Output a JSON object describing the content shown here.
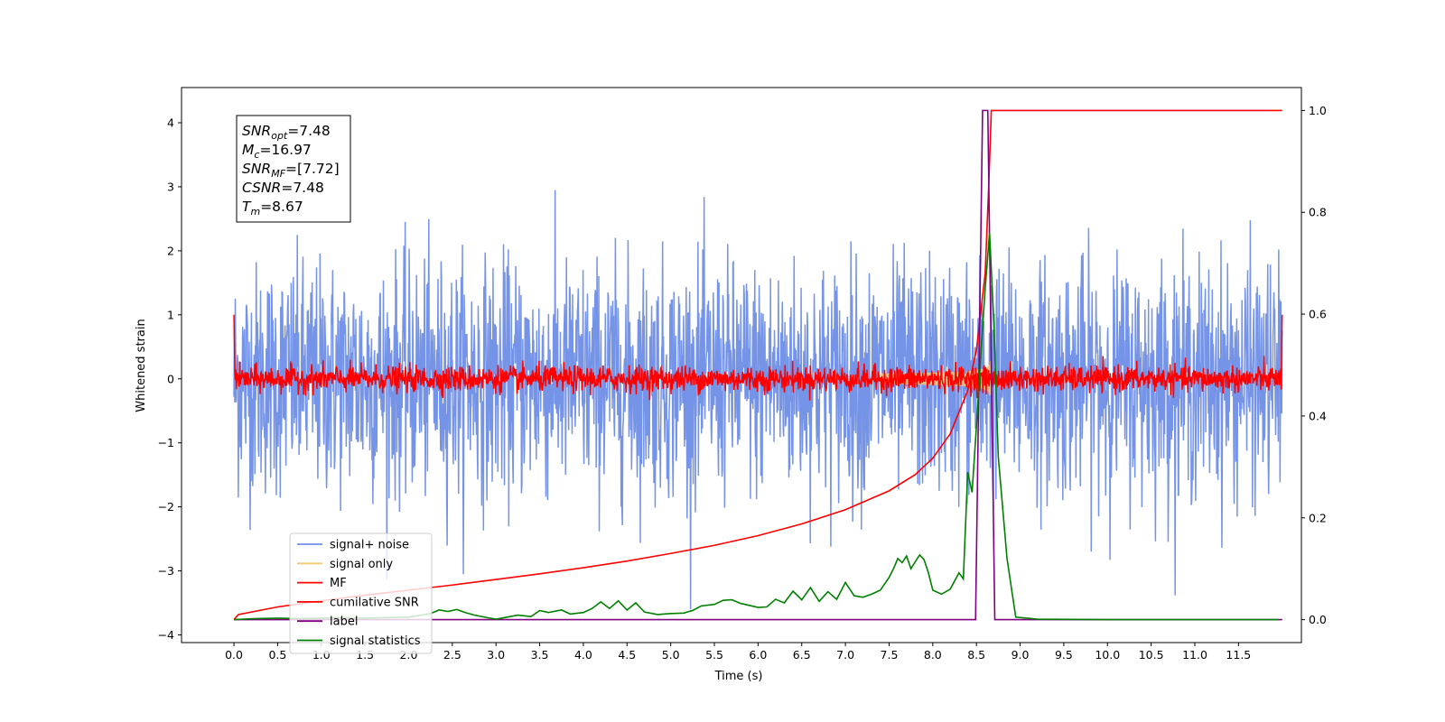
{
  "chart_data": {
    "type": "line",
    "title": "",
    "xlabel": "Time (s)",
    "ylabel": "Whitened strain",
    "y2label": "",
    "xlim": [
      -0.6,
      12.22
    ],
    "ylim": [
      -4.12,
      4.55
    ],
    "y2lim": [
      -0.045,
      1.045
    ],
    "x_ticks": [
      0.0,
      0.5,
      1.0,
      1.5,
      2.0,
      2.5,
      3.0,
      3.5,
      4.0,
      4.5,
      5.0,
      5.5,
      6.0,
      6.5,
      7.0,
      7.5,
      8.0,
      8.5,
      9.0,
      9.5,
      10.0,
      10.5,
      11.0,
      11.5
    ],
    "x_tick_labels": [
      "0.0",
      "0.5",
      "1.0",
      "1.5",
      "2.0",
      "2.5",
      "3.0",
      "3.5",
      "4.0",
      "4.5",
      "5.0",
      "5.5",
      "6.0",
      "6.5",
      "7.0",
      "7.5",
      "8.0",
      "8.5",
      "9.0",
      "9.5",
      "10.0",
      "10.5",
      "11.0",
      "11.5"
    ],
    "y_ticks": [
      -4,
      -3,
      -2,
      -1,
      0,
      1,
      2,
      3,
      4
    ],
    "y_tick_labels": [
      "−4",
      "−3",
      "−2",
      "−1",
      "0",
      "1",
      "2",
      "3",
      "4"
    ],
    "y2_ticks": [
      0.0,
      0.2,
      0.4,
      0.6,
      0.8,
      1.0
    ],
    "y2_tick_labels": [
      "0.0",
      "0.2",
      "0.4",
      "0.6",
      "0.8",
      "1.0"
    ],
    "grid": false,
    "legend_position": "lower-left",
    "series": [
      {
        "name": "signal+ noise",
        "axis": "left",
        "color": "#6f8ee6",
        "description": "whitened strain noise, approx. std 1.0, x from 0 to 12.0, peaks ~±3.4",
        "x_range": [
          0.0,
          12.0
        ],
        "std": 1.0
      },
      {
        "name": "signal only",
        "axis": "left",
        "color": "#f5c878",
        "description": "chirp waveform growing to ~±0.35 near merger at t=8.67",
        "x_range": [
          0.0,
          8.67
        ],
        "peak_amplitude": 0.35
      },
      {
        "name": "MF",
        "axis": "left",
        "color": "#ff0000",
        "description": "matched filter output, approx. std 0.1, starts ~1.0 and ends ~1.0",
        "x_range": [
          0.0,
          12.0
        ],
        "std": 0.1
      },
      {
        "name": "cumilative SNR",
        "axis": "right",
        "color": "#ff0000",
        "x": [
          0.0,
          0.05,
          0.5,
          1.0,
          1.5,
          2.0,
          2.5,
          3.0,
          3.5,
          4.0,
          4.5,
          5.0,
          5.5,
          6.0,
          6.5,
          7.0,
          7.5,
          7.8,
          8.0,
          8.2,
          8.4,
          8.5,
          8.6,
          8.64,
          8.67,
          12.0
        ],
        "values": [
          0.0,
          0.01,
          0.025,
          0.037,
          0.048,
          0.058,
          0.068,
          0.079,
          0.09,
          0.102,
          0.115,
          0.13,
          0.146,
          0.165,
          0.188,
          0.216,
          0.253,
          0.285,
          0.317,
          0.365,
          0.45,
          0.53,
          0.68,
          0.85,
          1.0,
          1.0
        ]
      },
      {
        "name": "label",
        "axis": "right",
        "color": "#800080",
        "x": [
          0.0,
          8.49,
          8.57,
          8.63,
          8.71,
          12.0
        ],
        "values": [
          0.0,
          0.0,
          1.0,
          1.0,
          0.0,
          0.0
        ]
      },
      {
        "name": "signal statistics",
        "axis": "right",
        "color": "#008000",
        "x": [
          0.0,
          0.25,
          0.5,
          0.75,
          1.0,
          1.25,
          1.5,
          1.75,
          2.0,
          2.15,
          2.25,
          2.35,
          2.45,
          2.55,
          2.65,
          2.75,
          2.9,
          3.0,
          3.1,
          3.25,
          3.4,
          3.5,
          3.6,
          3.75,
          3.85,
          4.0,
          4.1,
          4.2,
          4.3,
          4.4,
          4.5,
          4.6,
          4.7,
          4.85,
          5.0,
          5.15,
          5.25,
          5.35,
          5.5,
          5.6,
          5.7,
          5.8,
          5.9,
          6.0,
          6.1,
          6.2,
          6.3,
          6.4,
          6.5,
          6.6,
          6.7,
          6.8,
          6.9,
          7.0,
          7.1,
          7.2,
          7.3,
          7.4,
          7.5,
          7.55,
          7.6,
          7.65,
          7.7,
          7.75,
          7.8,
          7.85,
          7.9,
          7.95,
          8.0,
          8.1,
          8.2,
          8.3,
          8.35,
          8.4,
          8.45,
          8.5,
          8.55,
          8.6,
          8.65,
          8.7,
          8.75,
          8.85,
          8.95,
          9.2,
          10.0,
          11.0,
          11.95
        ],
        "values": [
          0.0,
          0.002,
          0.003,
          0.002,
          0.003,
          0.004,
          0.003,
          0.004,
          0.005,
          0.009,
          0.012,
          0.019,
          0.016,
          0.02,
          0.014,
          0.009,
          0.004,
          0.001,
          0.004,
          0.009,
          0.006,
          0.018,
          0.014,
          0.019,
          0.011,
          0.014,
          0.022,
          0.035,
          0.022,
          0.037,
          0.019,
          0.033,
          0.015,
          0.01,
          0.012,
          0.013,
          0.018,
          0.027,
          0.03,
          0.038,
          0.039,
          0.032,
          0.028,
          0.024,
          0.025,
          0.04,
          0.033,
          0.056,
          0.039,
          0.063,
          0.036,
          0.055,
          0.04,
          0.073,
          0.047,
          0.044,
          0.05,
          0.058,
          0.083,
          0.1,
          0.12,
          0.112,
          0.125,
          0.1,
          0.114,
          0.127,
          0.118,
          0.092,
          0.058,
          0.05,
          0.06,
          0.092,
          0.08,
          0.29,
          0.25,
          0.38,
          0.52,
          0.65,
          0.76,
          0.58,
          0.32,
          0.12,
          0.005,
          0.001,
          0.0,
          0.0,
          0.0
        ]
      }
    ],
    "merger_time": 8.67,
    "annotation": [
      {
        "label": "SNR",
        "sub": "opt",
        "value": "=7.48"
      },
      {
        "label": "M",
        "sub": "c",
        "value": "=16.97"
      },
      {
        "label": "SNR",
        "sub": "MF",
        "value": "=[7.72]"
      },
      {
        "label": "CSNR",
        "sub": "",
        "value": "=7.48"
      },
      {
        "label": "T",
        "sub": "m",
        "value": "=8.67"
      }
    ]
  }
}
